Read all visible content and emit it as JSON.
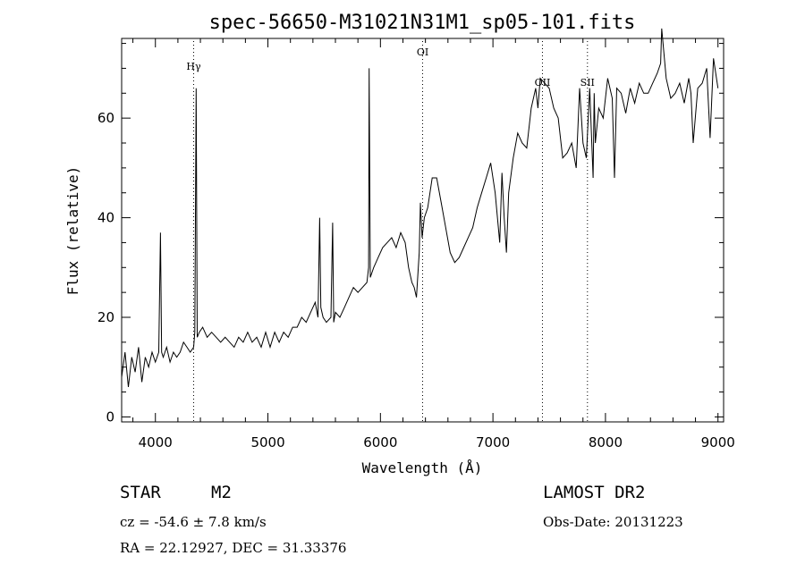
{
  "chart_data": {
    "type": "line",
    "title": "spec-56650-M31021N31M1_sp05-101.fits",
    "xlabel": "Wavelength (Å)",
    "ylabel": "Flux (relative)",
    "xlim": [
      3700,
      9050
    ],
    "ylim": [
      -1,
      76
    ],
    "xticks": [
      4000,
      5000,
      6000,
      7000,
      8000,
      9000
    ],
    "yticks": [
      0,
      20,
      40,
      60
    ],
    "grid": false,
    "series": [
      {
        "color": "#000000",
        "x": [
          3700,
          3730,
          3760,
          3790,
          3820,
          3850,
          3880,
          3910,
          3940,
          3970,
          4000,
          4030,
          4045,
          4055,
          4070,
          4100,
          4130,
          4160,
          4190,
          4220,
          4250,
          4280,
          4310,
          4340,
          4350,
          4362,
          4372,
          4390,
          4420,
          4460,
          4500,
          4540,
          4580,
          4620,
          4660,
          4700,
          4740,
          4780,
          4820,
          4860,
          4900,
          4940,
          4980,
          5020,
          5060,
          5100,
          5140,
          5180,
          5220,
          5260,
          5300,
          5340,
          5380,
          5420,
          5445,
          5460,
          5470,
          5490,
          5520,
          5560,
          5575,
          5585,
          5600,
          5640,
          5680,
          5720,
          5760,
          5800,
          5840,
          5880,
          5895,
          5900,
          5910,
          5940,
          5980,
          6020,
          6060,
          6100,
          6140,
          6180,
          6220,
          6250,
          6280,
          6300,
          6320,
          6345,
          6355,
          6370,
          6390,
          6420,
          6460,
          6500,
          6540,
          6580,
          6620,
          6660,
          6700,
          6740,
          6780,
          6820,
          6860,
          6900,
          6940,
          6980,
          7020,
          7060,
          7080,
          7100,
          7120,
          7140,
          7180,
          7220,
          7260,
          7300,
          7340,
          7380,
          7400,
          7420,
          7460,
          7500,
          7540,
          7580,
          7620,
          7660,
          7700,
          7740,
          7770,
          7800,
          7830,
          7860,
          7890,
          7900,
          7910,
          7940,
          7980,
          8020,
          8060,
          8080,
          8100,
          8140,
          8180,
          8220,
          8260,
          8300,
          8340,
          8380,
          8420,
          8460,
          8490,
          8500,
          8540,
          8580,
          8620,
          8660,
          8700,
          8740,
          8760,
          8780,
          8820,
          8860,
          8900,
          8930,
          8960,
          9000
        ],
        "values": [
          8,
          13,
          6,
          12,
          9,
          14,
          7,
          12,
          10,
          13,
          11,
          13,
          37,
          13,
          12,
          14,
          11,
          13,
          12,
          13,
          15,
          14,
          13,
          14,
          17,
          66,
          16,
          17,
          18,
          16,
          17,
          16,
          15,
          16,
          15,
          14,
          16,
          15,
          17,
          15,
          16,
          14,
          17,
          14,
          17,
          15,
          17,
          16,
          18,
          18,
          20,
          19,
          21,
          23,
          20,
          40,
          22,
          20,
          19,
          20,
          39,
          19,
          21,
          20,
          22,
          24,
          26,
          25,
          26,
          27,
          30,
          70,
          28,
          30,
          32,
          34,
          35,
          36,
          34,
          37,
          35,
          30,
          27,
          26,
          24,
          33,
          43,
          36,
          40,
          42,
          48,
          48,
          43,
          38,
          33,
          31,
          32,
          34,
          36,
          38,
          42,
          45,
          48,
          51,
          45,
          35,
          49,
          40,
          33,
          45,
          52,
          57,
          55,
          54,
          62,
          66,
          62,
          68,
          67,
          66,
          62,
          60,
          52,
          53,
          55,
          50,
          66,
          55,
          52,
          66,
          48,
          65,
          55,
          62,
          60,
          68,
          64,
          48,
          66,
          65,
          61,
          66,
          63,
          67,
          65,
          65,
          67,
          69,
          71,
          78,
          68,
          64,
          65,
          67,
          63,
          68,
          65,
          55,
          66,
          67,
          70,
          56,
          72,
          66
        ]
      }
    ],
    "annotations": [
      {
        "label": "Hγ",
        "x": 4340
      },
      {
        "label": "OI",
        "x": 6375
      },
      {
        "label": "OII",
        "x": 7440
      },
      {
        "label": "SII",
        "x": 7840
      }
    ]
  },
  "info": {
    "object_type": "STAR",
    "subclass": "M2",
    "survey": "LAMOST DR2",
    "velocity": "cz = -54.6 ± 7.8 km/s",
    "obs_date": "Obs-Date: 20131223",
    "coords": "RA =  22.12927, DEC =  31.33376"
  }
}
